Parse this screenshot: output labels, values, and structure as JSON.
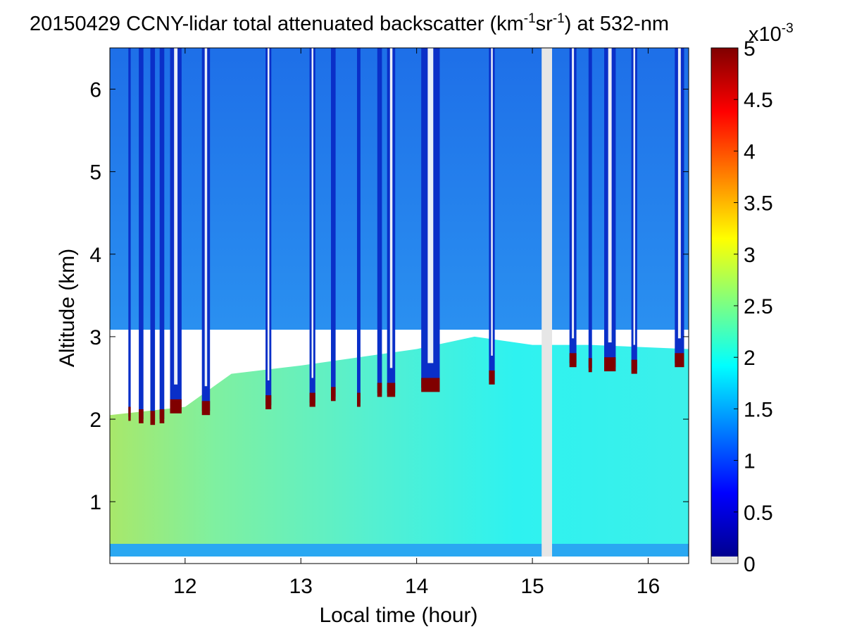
{
  "chart_data": {
    "type": "heatmap",
    "title_main": "20150429 CCNY-lidar total attenuated backscatter (km",
    "title_exp1": "-1",
    "title_mid": "sr",
    "title_exp2": "-1",
    "title_end": ") at 532-nm",
    "xlabel": "Local time (hour)",
    "ylabel": "Altitude (km)",
    "xlim": [
      11.35,
      16.35
    ],
    "ylim": [
      0.25,
      6.5
    ],
    "xticks": [
      12,
      13,
      14,
      15,
      16
    ],
    "yticks": [
      1,
      2,
      3,
      4,
      5,
      6
    ],
    "colorbar": {
      "min": 0,
      "max": 5,
      "ticks": [
        "0",
        "0.5",
        "1",
        "1.5",
        "2",
        "2.5",
        "3",
        "3.5",
        "4",
        "4.5",
        "5"
      ],
      "multiplier_base": "x10",
      "multiplier_exp": "-3",
      "colormap": "jet"
    },
    "missing_data_interval": [
      15.08,
      15.17
    ],
    "cloud_columns": [
      {
        "t": 11.52,
        "base": 2.03,
        "w": 0.02
      },
      {
        "t": 11.62,
        "base": 2.0,
        "w": 0.04
      },
      {
        "t": 11.72,
        "base": 1.98,
        "w": 0.04
      },
      {
        "t": 11.8,
        "base": 2.0,
        "w": 0.04
      },
      {
        "t": 11.92,
        "base": 2.12,
        "w": 0.1
      },
      {
        "t": 12.18,
        "base": 2.1,
        "w": 0.07
      },
      {
        "t": 12.72,
        "base": 2.17,
        "w": 0.05
      },
      {
        "t": 13.1,
        "base": 2.2,
        "w": 0.05
      },
      {
        "t": 13.28,
        "base": 2.27,
        "w": 0.04
      },
      {
        "t": 13.5,
        "base": 2.2,
        "w": 0.03
      },
      {
        "t": 13.68,
        "base": 2.32,
        "w": 0.04
      },
      {
        "t": 13.78,
        "base": 2.32,
        "w": 0.07
      },
      {
        "t": 14.12,
        "base": 2.38,
        "w": 0.16
      },
      {
        "t": 14.65,
        "base": 2.47,
        "w": 0.05
      },
      {
        "t": 15.35,
        "base": 2.68,
        "w": 0.06
      },
      {
        "t": 15.5,
        "base": 2.62,
        "w": 0.03
      },
      {
        "t": 15.67,
        "base": 2.63,
        "w": 0.1
      },
      {
        "t": 15.88,
        "base": 2.6,
        "w": 0.05
      },
      {
        "t": 16.27,
        "base": 2.68,
        "w": 0.08
      }
    ],
    "aerosol_layer": [
      {
        "t": 11.35,
        "top": 2.05,
        "value": 2.5
      },
      {
        "t": 12.0,
        "top": 2.15,
        "value": 2.3
      },
      {
        "t": 12.4,
        "top": 2.55,
        "value": 2.2
      },
      {
        "t": 13.0,
        "top": 2.65,
        "value": 2.1
      },
      {
        "t": 14.0,
        "top": 2.85,
        "value": 2.0
      },
      {
        "t": 14.5,
        "top": 3.0,
        "value": 2.0
      },
      {
        "t": 15.0,
        "top": 2.9,
        "value": 1.95
      },
      {
        "t": 15.5,
        "top": 2.9,
        "value": 1.95
      },
      {
        "t": 16.35,
        "top": 2.85,
        "value": 1.9
      }
    ],
    "free_troposphere_value": 1.1
  }
}
